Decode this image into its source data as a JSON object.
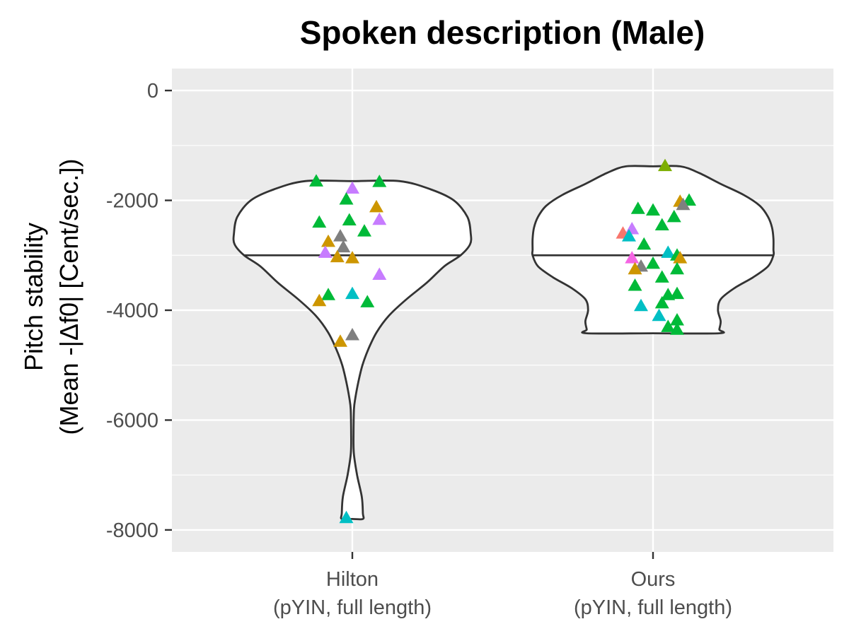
{
  "chart_data": {
    "type": "violin",
    "title": "Spoken description (Male)",
    "ylabel_lines": [
      "Pitch stability",
      "(Mean -|Δf0| [Cent/sec.])"
    ],
    "xlabel": "",
    "ylim": [
      -8400,
      400
    ],
    "yticks": [
      0,
      -2000,
      -4000,
      -6000,
      -8000
    ],
    "yminor": [
      -1000,
      -3000,
      -5000,
      -7000
    ],
    "grid": true,
    "legend": "none",
    "categories": [
      {
        "label_lines": [
          "Hilton",
          "(pYIN, full length)"
        ],
        "median": -3000,
        "range": [
          -7800,
          -1650
        ],
        "profile": [
          [
            -1650,
            0.35
          ],
          [
            -1800,
            0.58
          ],
          [
            -2000,
            0.75
          ],
          [
            -2300,
            0.85
          ],
          [
            -2600,
            0.875
          ],
          [
            -2800,
            0.87
          ],
          [
            -3000,
            0.8
          ],
          [
            -3200,
            0.68
          ],
          [
            -3500,
            0.55
          ],
          [
            -3800,
            0.4
          ],
          [
            -4100,
            0.27
          ],
          [
            -4400,
            0.18
          ],
          [
            -4700,
            0.12
          ],
          [
            -5000,
            0.075
          ],
          [
            -5300,
            0.045
          ],
          [
            -5600,
            0.022
          ],
          [
            -5800,
            0.012
          ],
          [
            -6200,
            0.009
          ],
          [
            -6600,
            0.011
          ],
          [
            -7000,
            0.035
          ],
          [
            -7400,
            0.07
          ],
          [
            -7700,
            0.078
          ],
          [
            -7800,
            0.078
          ]
        ],
        "points": [
          {
            "y": -1650,
            "dx": -0.12,
            "color": "#00BA38"
          },
          {
            "y": -1660,
            "dx": 0.09,
            "color": "#00BA38"
          },
          {
            "y": -1780,
            "dx": 0.0,
            "color": "#C77CFF"
          },
          {
            "y": -1980,
            "dx": -0.02,
            "color": "#00BA38"
          },
          {
            "y": -2120,
            "dx": 0.08,
            "color": "#CD9600"
          },
          {
            "y": -2350,
            "dx": 0.09,
            "color": "#C77CFF"
          },
          {
            "y": -2360,
            "dx": -0.01,
            "color": "#00BA38"
          },
          {
            "y": -2400,
            "dx": -0.11,
            "color": "#00BA38"
          },
          {
            "y": -2560,
            "dx": 0.04,
            "color": "#00BA38"
          },
          {
            "y": -2650,
            "dx": -0.04,
            "color": "#7F7F7F"
          },
          {
            "y": -2750,
            "dx": -0.08,
            "color": "#CD9600"
          },
          {
            "y": -2850,
            "dx": -0.03,
            "color": "#7F7F7F"
          },
          {
            "y": -2950,
            "dx": -0.09,
            "color": "#C77CFF"
          },
          {
            "y": -3030,
            "dx": -0.05,
            "color": "#CD9600"
          },
          {
            "y": -3050,
            "dx": 0.0,
            "color": "#CD9600"
          },
          {
            "y": -3350,
            "dx": 0.09,
            "color": "#C77CFF"
          },
          {
            "y": -3700,
            "dx": 0.0,
            "color": "#00BFC4"
          },
          {
            "y": -3720,
            "dx": -0.08,
            "color": "#00BA38"
          },
          {
            "y": -3830,
            "dx": -0.11,
            "color": "#CD9600"
          },
          {
            "y": -3850,
            "dx": 0.05,
            "color": "#00BA38"
          },
          {
            "y": -4450,
            "dx": 0.0,
            "color": "#7F7F7F"
          },
          {
            "y": -4570,
            "dx": -0.04,
            "color": "#CD9600"
          },
          {
            "y": -7780,
            "dx": -0.02,
            "color": "#00BFC4"
          }
        ]
      },
      {
        "label_lines": [
          "Ours",
          "(pYIN, full length)"
        ],
        "median": -3000,
        "range": [
          -4420,
          -1380
        ],
        "profile": [
          [
            -1380,
            0.2
          ],
          [
            -1500,
            0.34
          ],
          [
            -1700,
            0.5
          ],
          [
            -1900,
            0.67
          ],
          [
            -2100,
            0.79
          ],
          [
            -2300,
            0.85
          ],
          [
            -2500,
            0.88
          ],
          [
            -2700,
            0.89
          ],
          [
            -2900,
            0.89
          ],
          [
            -3000,
            0.89
          ],
          [
            -3200,
            0.85
          ],
          [
            -3400,
            0.74
          ],
          [
            -3600,
            0.6
          ],
          [
            -3800,
            0.5
          ],
          [
            -4000,
            0.48
          ],
          [
            -4200,
            0.5
          ],
          [
            -4350,
            0.49
          ],
          [
            -4420,
            0.49
          ]
        ],
        "points": [
          {
            "y": -1370,
            "dx": 0.04,
            "color": "#7CAE00"
          },
          {
            "y": -2000,
            "dx": 0.12,
            "color": "#00BA38"
          },
          {
            "y": -2020,
            "dx": 0.09,
            "color": "#CD9600"
          },
          {
            "y": -2080,
            "dx": 0.1,
            "color": "#7F7F7F"
          },
          {
            "y": -2150,
            "dx": -0.05,
            "color": "#00BA38"
          },
          {
            "y": -2180,
            "dx": 0.0,
            "color": "#00BA38"
          },
          {
            "y": -2300,
            "dx": 0.07,
            "color": "#00BA38"
          },
          {
            "y": -2450,
            "dx": 0.03,
            "color": "#00BA38"
          },
          {
            "y": -2520,
            "dx": -0.07,
            "color": "#C77CFF"
          },
          {
            "y": -2600,
            "dx": -0.1,
            "color": "#F8766D"
          },
          {
            "y": -2650,
            "dx": -0.08,
            "color": "#00BFC4"
          },
          {
            "y": -2800,
            "dx": -0.03,
            "color": "#00BA38"
          },
          {
            "y": -2950,
            "dx": 0.05,
            "color": "#00BFC4"
          },
          {
            "y": -3000,
            "dx": 0.08,
            "color": "#00BA38"
          },
          {
            "y": -3050,
            "dx": -0.07,
            "color": "#F564E3"
          },
          {
            "y": -3050,
            "dx": 0.09,
            "color": "#CD9600"
          },
          {
            "y": -3150,
            "dx": 0.0,
            "color": "#00BA38"
          },
          {
            "y": -3200,
            "dx": -0.04,
            "color": "#7F7F7F"
          },
          {
            "y": -3250,
            "dx": -0.06,
            "color": "#CD9600"
          },
          {
            "y": -3250,
            "dx": 0.08,
            "color": "#00BA38"
          },
          {
            "y": -3400,
            "dx": 0.03,
            "color": "#00BA38"
          },
          {
            "y": -3550,
            "dx": -0.06,
            "color": "#00BA38"
          },
          {
            "y": -3700,
            "dx": 0.08,
            "color": "#00BA38"
          },
          {
            "y": -3720,
            "dx": 0.05,
            "color": "#00BA38"
          },
          {
            "y": -3870,
            "dx": 0.03,
            "color": "#00BA38"
          },
          {
            "y": -3920,
            "dx": -0.04,
            "color": "#00BFC4"
          },
          {
            "y": -4100,
            "dx": 0.02,
            "color": "#00BFC4"
          },
          {
            "y": -4180,
            "dx": 0.08,
            "color": "#00BA38"
          },
          {
            "y": -4300,
            "dx": 0.05,
            "color": "#00BA38"
          },
          {
            "y": -4350,
            "dx": 0.08,
            "color": "#00BA38"
          }
        ]
      }
    ]
  }
}
